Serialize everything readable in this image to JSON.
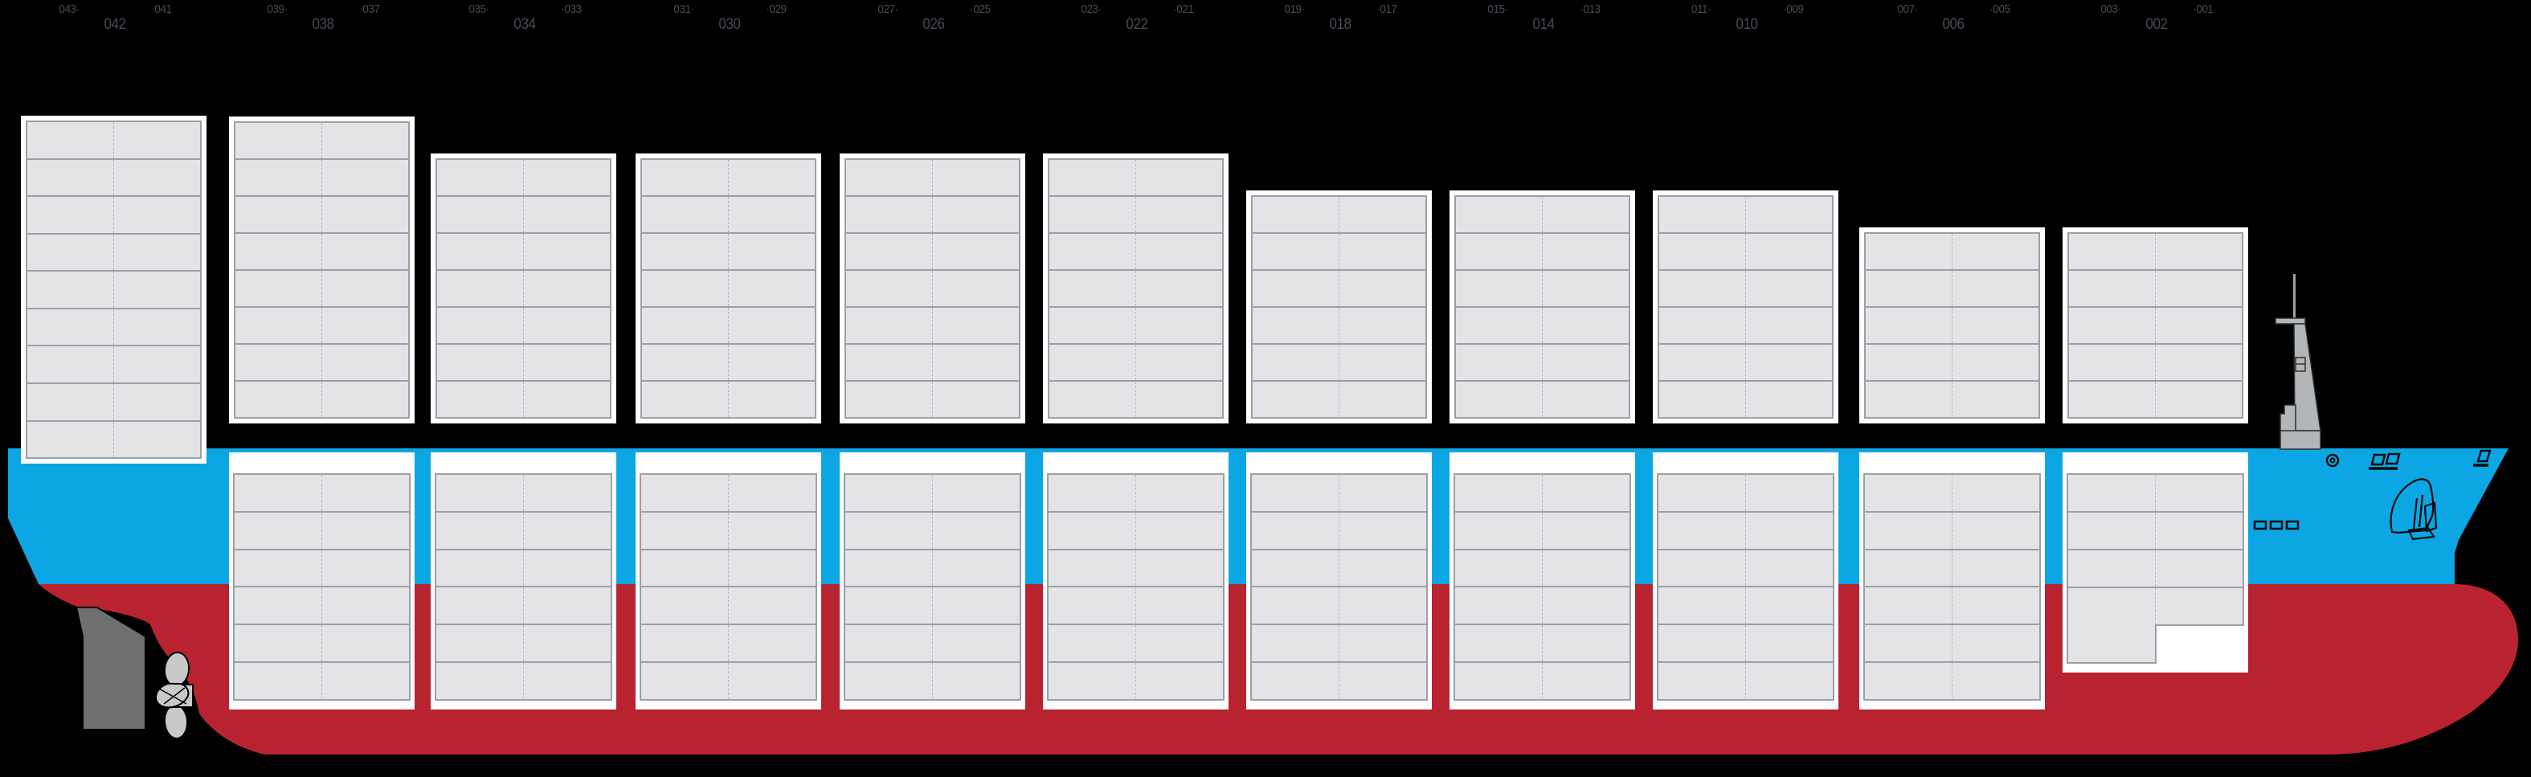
{
  "diagram": {
    "kind": "vessel-stowage-side-profile",
    "orientation": "bow-right"
  },
  "bays": [
    {
      "bay": "042",
      "aft_slot": "043·",
      "fwd_slot": "·041",
      "tiers_above": 9,
      "rows_below": 0
    },
    {
      "bay": "038",
      "aft_slot": "039·",
      "fwd_slot": "·037",
      "tiers_above": 8,
      "rows_below": 6
    },
    {
      "bay": "034",
      "aft_slot": "035·",
      "fwd_slot": "·033",
      "tiers_above": 7,
      "rows_below": 6
    },
    {
      "bay": "030",
      "aft_slot": "031·",
      "fwd_slot": "·029",
      "tiers_above": 7,
      "rows_below": 6
    },
    {
      "bay": "026",
      "aft_slot": "027·",
      "fwd_slot": "·025",
      "tiers_above": 7,
      "rows_below": 6
    },
    {
      "bay": "022",
      "aft_slot": "023·",
      "fwd_slot": "·021",
      "tiers_above": 7,
      "rows_below": 6
    },
    {
      "bay": "018",
      "aft_slot": "019·",
      "fwd_slot": "·017",
      "tiers_above": 6,
      "rows_below": 6
    },
    {
      "bay": "014",
      "aft_slot": "015·",
      "fwd_slot": "·013",
      "tiers_above": 6,
      "rows_below": 6
    },
    {
      "bay": "010",
      "aft_slot": "011·",
      "fwd_slot": "·009",
      "tiers_above": 6,
      "rows_below": 6
    },
    {
      "bay": "006",
      "aft_slot": "007·",
      "fwd_slot": "·005",
      "tiers_above": 5,
      "rows_below": 6
    },
    {
      "bay": "002",
      "aft_slot": "003·",
      "fwd_slot": "·001",
      "tiers_above": 5,
      "rows_below": 4,
      "extra_half_row": true
    }
  ],
  "colors": {
    "background": "#000000",
    "hull_topside": "#0BA6E3",
    "hull_bottom": "#B8232F",
    "block_bg": "#FFFFFF",
    "cell": "#E4E4E7",
    "cell_border": "#9AA0A9",
    "slot_divider": "#B6B9C3",
    "label_text": "#454B55",
    "rudder": "#6E6F71",
    "propeller": "#C9C9C9",
    "mast": "#B3B6B8",
    "line": "#0B0B0B"
  },
  "decorations": [
    "rudder",
    "propeller-icon",
    "signal-mast-icon",
    "anchor-icon",
    "mooring-chock-icon",
    "deck-hatch-icons",
    "hull-port-dashes"
  ]
}
